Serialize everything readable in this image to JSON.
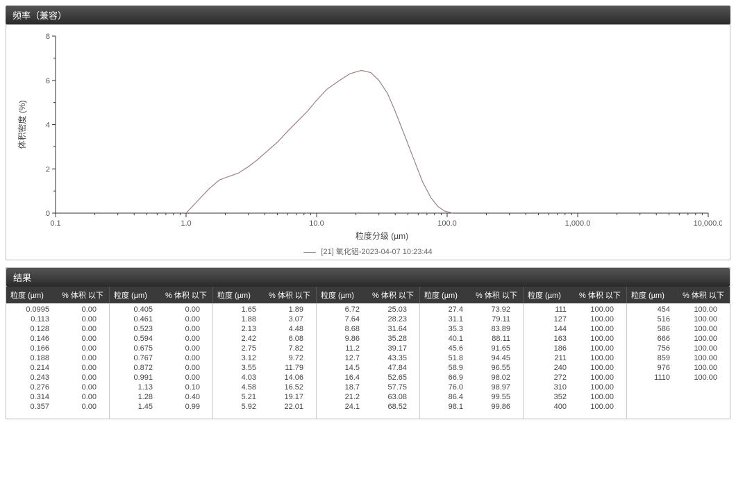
{
  "chart": {
    "panel_title": "频率（兼容）",
    "type": "line",
    "xlabel": "粒度分级 (µm)",
    "ylabel": "体积密度 (%)",
    "x_scale": "log",
    "x_ticks": [
      0.1,
      1.0,
      10.0,
      100.0,
      1000.0,
      10000.0
    ],
    "x_tick_labels": [
      "0.1",
      "1.0",
      "10.0",
      "100.0",
      "1,000.0",
      "10,000.0"
    ],
    "y_ticks": [
      0,
      2,
      4,
      6,
      8
    ],
    "y_tick_labels": [
      "0",
      "2",
      "4",
      "6",
      "8"
    ],
    "ylim": [
      0,
      8
    ],
    "line_color": "#a08080",
    "line_width": 1.2,
    "background_color": "#ffffff",
    "axis_color": "#333333",
    "grid_color": "#cccccc",
    "font_size_axis": 11,
    "legend_text": "[21] 氧化铝-2023-04-07 10:23:44",
    "curve_points_xy": [
      [
        1.0,
        0.0
      ],
      [
        1.2,
        0.5
      ],
      [
        1.5,
        1.1
      ],
      [
        1.8,
        1.5
      ],
      [
        2.0,
        1.6
      ],
      [
        2.5,
        1.8
      ],
      [
        3.0,
        2.1
      ],
      [
        3.5,
        2.4
      ],
      [
        4.0,
        2.7
      ],
      [
        5.0,
        3.2
      ],
      [
        6.0,
        3.7
      ],
      [
        7.0,
        4.1
      ],
      [
        8.5,
        4.6
      ],
      [
        10.0,
        5.1
      ],
      [
        12.0,
        5.6
      ],
      [
        15.0,
        6.0
      ],
      [
        18.0,
        6.3
      ],
      [
        22.0,
        6.45
      ],
      [
        26.0,
        6.35
      ],
      [
        30.0,
        6.0
      ],
      [
        35.0,
        5.4
      ],
      [
        40.0,
        4.6
      ],
      [
        48.0,
        3.4
      ],
      [
        55.0,
        2.5
      ],
      [
        65.0,
        1.4
      ],
      [
        75.0,
        0.7
      ],
      [
        85.0,
        0.3
      ],
      [
        95.0,
        0.1
      ],
      [
        110.0,
        0.0
      ]
    ]
  },
  "results": {
    "panel_title": "结果",
    "col_header_size": "粒度 (µm)",
    "col_header_pct": "% 体积 以下",
    "columns": [
      [
        [
          "0.0995",
          "0.00"
        ],
        [
          "0.113",
          "0.00"
        ],
        [
          "0.128",
          "0.00"
        ],
        [
          "0.146",
          "0.00"
        ],
        [
          "0.166",
          "0.00"
        ],
        [
          "0.188",
          "0.00"
        ],
        [
          "0.214",
          "0.00"
        ],
        [
          "0.243",
          "0.00"
        ],
        [
          "0.276",
          "0.00"
        ],
        [
          "0.314",
          "0.00"
        ],
        [
          "0.357",
          "0.00"
        ]
      ],
      [
        [
          "0.405",
          "0.00"
        ],
        [
          "0.461",
          "0.00"
        ],
        [
          "0.523",
          "0.00"
        ],
        [
          "0.594",
          "0.00"
        ],
        [
          "0.675",
          "0.00"
        ],
        [
          "0.767",
          "0.00"
        ],
        [
          "0.872",
          "0.00"
        ],
        [
          "0.991",
          "0.00"
        ],
        [
          "1.13",
          "0.10"
        ],
        [
          "1.28",
          "0.40"
        ],
        [
          "1.45",
          "0.99"
        ]
      ],
      [
        [
          "1.65",
          "1.89"
        ],
        [
          "1.88",
          "3.07"
        ],
        [
          "2.13",
          "4.48"
        ],
        [
          "2.42",
          "6.08"
        ],
        [
          "2.75",
          "7.82"
        ],
        [
          "3.12",
          "9.72"
        ],
        [
          "3.55",
          "11.79"
        ],
        [
          "4.03",
          "14.06"
        ],
        [
          "4.58",
          "16.52"
        ],
        [
          "5.21",
          "19.17"
        ],
        [
          "5.92",
          "22.01"
        ]
      ],
      [
        [
          "6.72",
          "25.03"
        ],
        [
          "7.64",
          "28.23"
        ],
        [
          "8.68",
          "31.64"
        ],
        [
          "9.86",
          "35.28"
        ],
        [
          "11.2",
          "39.17"
        ],
        [
          "12.7",
          "43.35"
        ],
        [
          "14.5",
          "47.84"
        ],
        [
          "16.4",
          "52.65"
        ],
        [
          "18.7",
          "57.75"
        ],
        [
          "21.2",
          "63.08"
        ],
        [
          "24.1",
          "68.52"
        ]
      ],
      [
        [
          "27.4",
          "73.92"
        ],
        [
          "31.1",
          "79.11"
        ],
        [
          "35.3",
          "83.89"
        ],
        [
          "40.1",
          "88.11"
        ],
        [
          "45.6",
          "91.65"
        ],
        [
          "51.8",
          "94.45"
        ],
        [
          "58.9",
          "96.55"
        ],
        [
          "66.9",
          "98.02"
        ],
        [
          "76.0",
          "98.97"
        ],
        [
          "86.4",
          "99.55"
        ],
        [
          "98.1",
          "99.86"
        ]
      ],
      [
        [
          "111",
          "100.00"
        ],
        [
          "127",
          "100.00"
        ],
        [
          "144",
          "100.00"
        ],
        [
          "163",
          "100.00"
        ],
        [
          "186",
          "100.00"
        ],
        [
          "211",
          "100.00"
        ],
        [
          "240",
          "100.00"
        ],
        [
          "272",
          "100.00"
        ],
        [
          "310",
          "100.00"
        ],
        [
          "352",
          "100.00"
        ],
        [
          "400",
          "100.00"
        ]
      ],
      [
        [
          "454",
          "100.00"
        ],
        [
          "516",
          "100.00"
        ],
        [
          "586",
          "100.00"
        ],
        [
          "666",
          "100.00"
        ],
        [
          "756",
          "100.00"
        ],
        [
          "859",
          "100.00"
        ],
        [
          "976",
          "100.00"
        ],
        [
          "1110",
          "100.00"
        ]
      ]
    ]
  }
}
